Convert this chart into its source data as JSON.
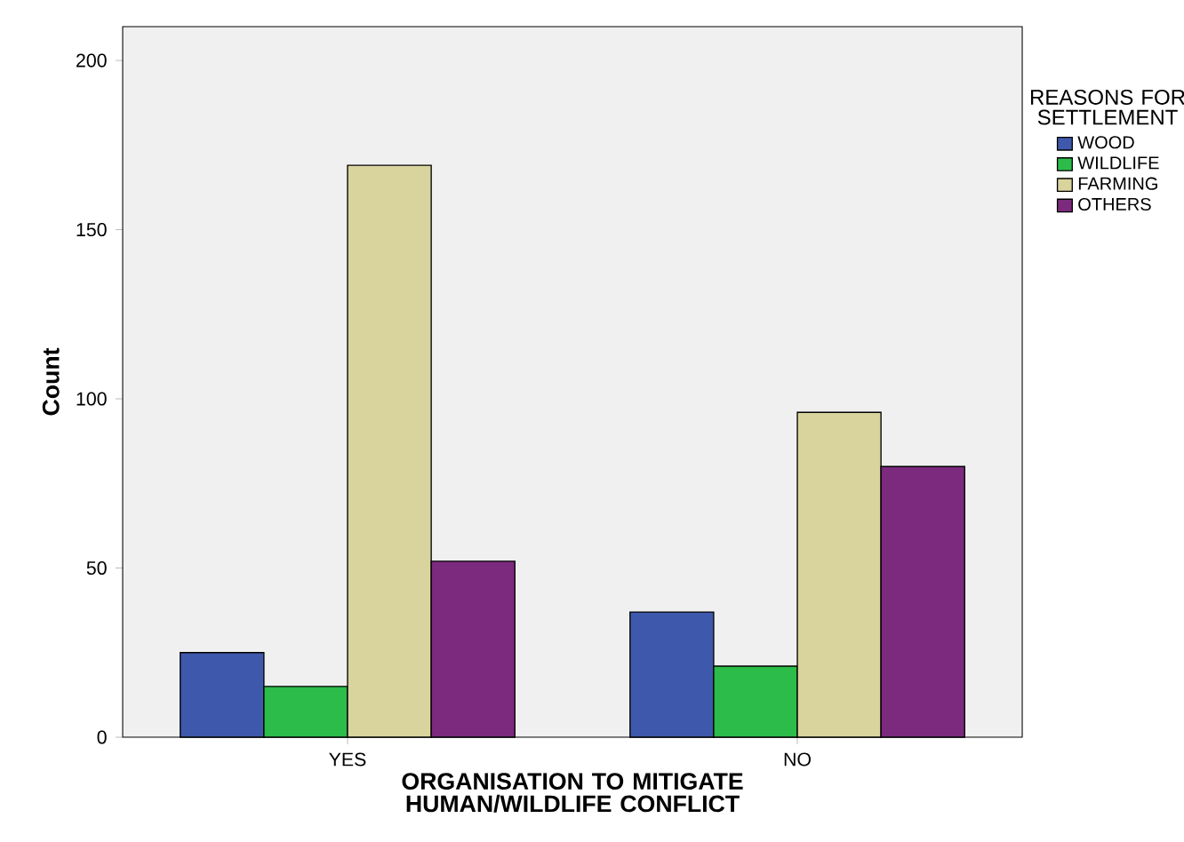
{
  "chart_data": {
    "type": "bar",
    "xlabel": "ORGANISATION TO MITIGATE HUMAN/WILDLIFE CONFLICT",
    "ylabel": "Count",
    "legend_title": "REASONS FOR SETTLEMENT",
    "categories": [
      "YES",
      "NO"
    ],
    "series": [
      {
        "name": "WOOD",
        "color": "#3e59ab",
        "values": [
          25,
          37
        ]
      },
      {
        "name": "WILDLIFE",
        "color": "#2cbc4a",
        "values": [
          15,
          21
        ]
      },
      {
        "name": "FARMING",
        "color": "#d9d49d",
        "values": [
          169,
          96
        ]
      },
      {
        "name": "OTHERS",
        "color": "#7b2a7d",
        "values": [
          52,
          80
        ]
      }
    ],
    "ylim": [
      0,
      210
    ],
    "yticks": [
      0,
      50,
      100,
      150,
      200
    ],
    "grid": false,
    "legend": "right"
  }
}
